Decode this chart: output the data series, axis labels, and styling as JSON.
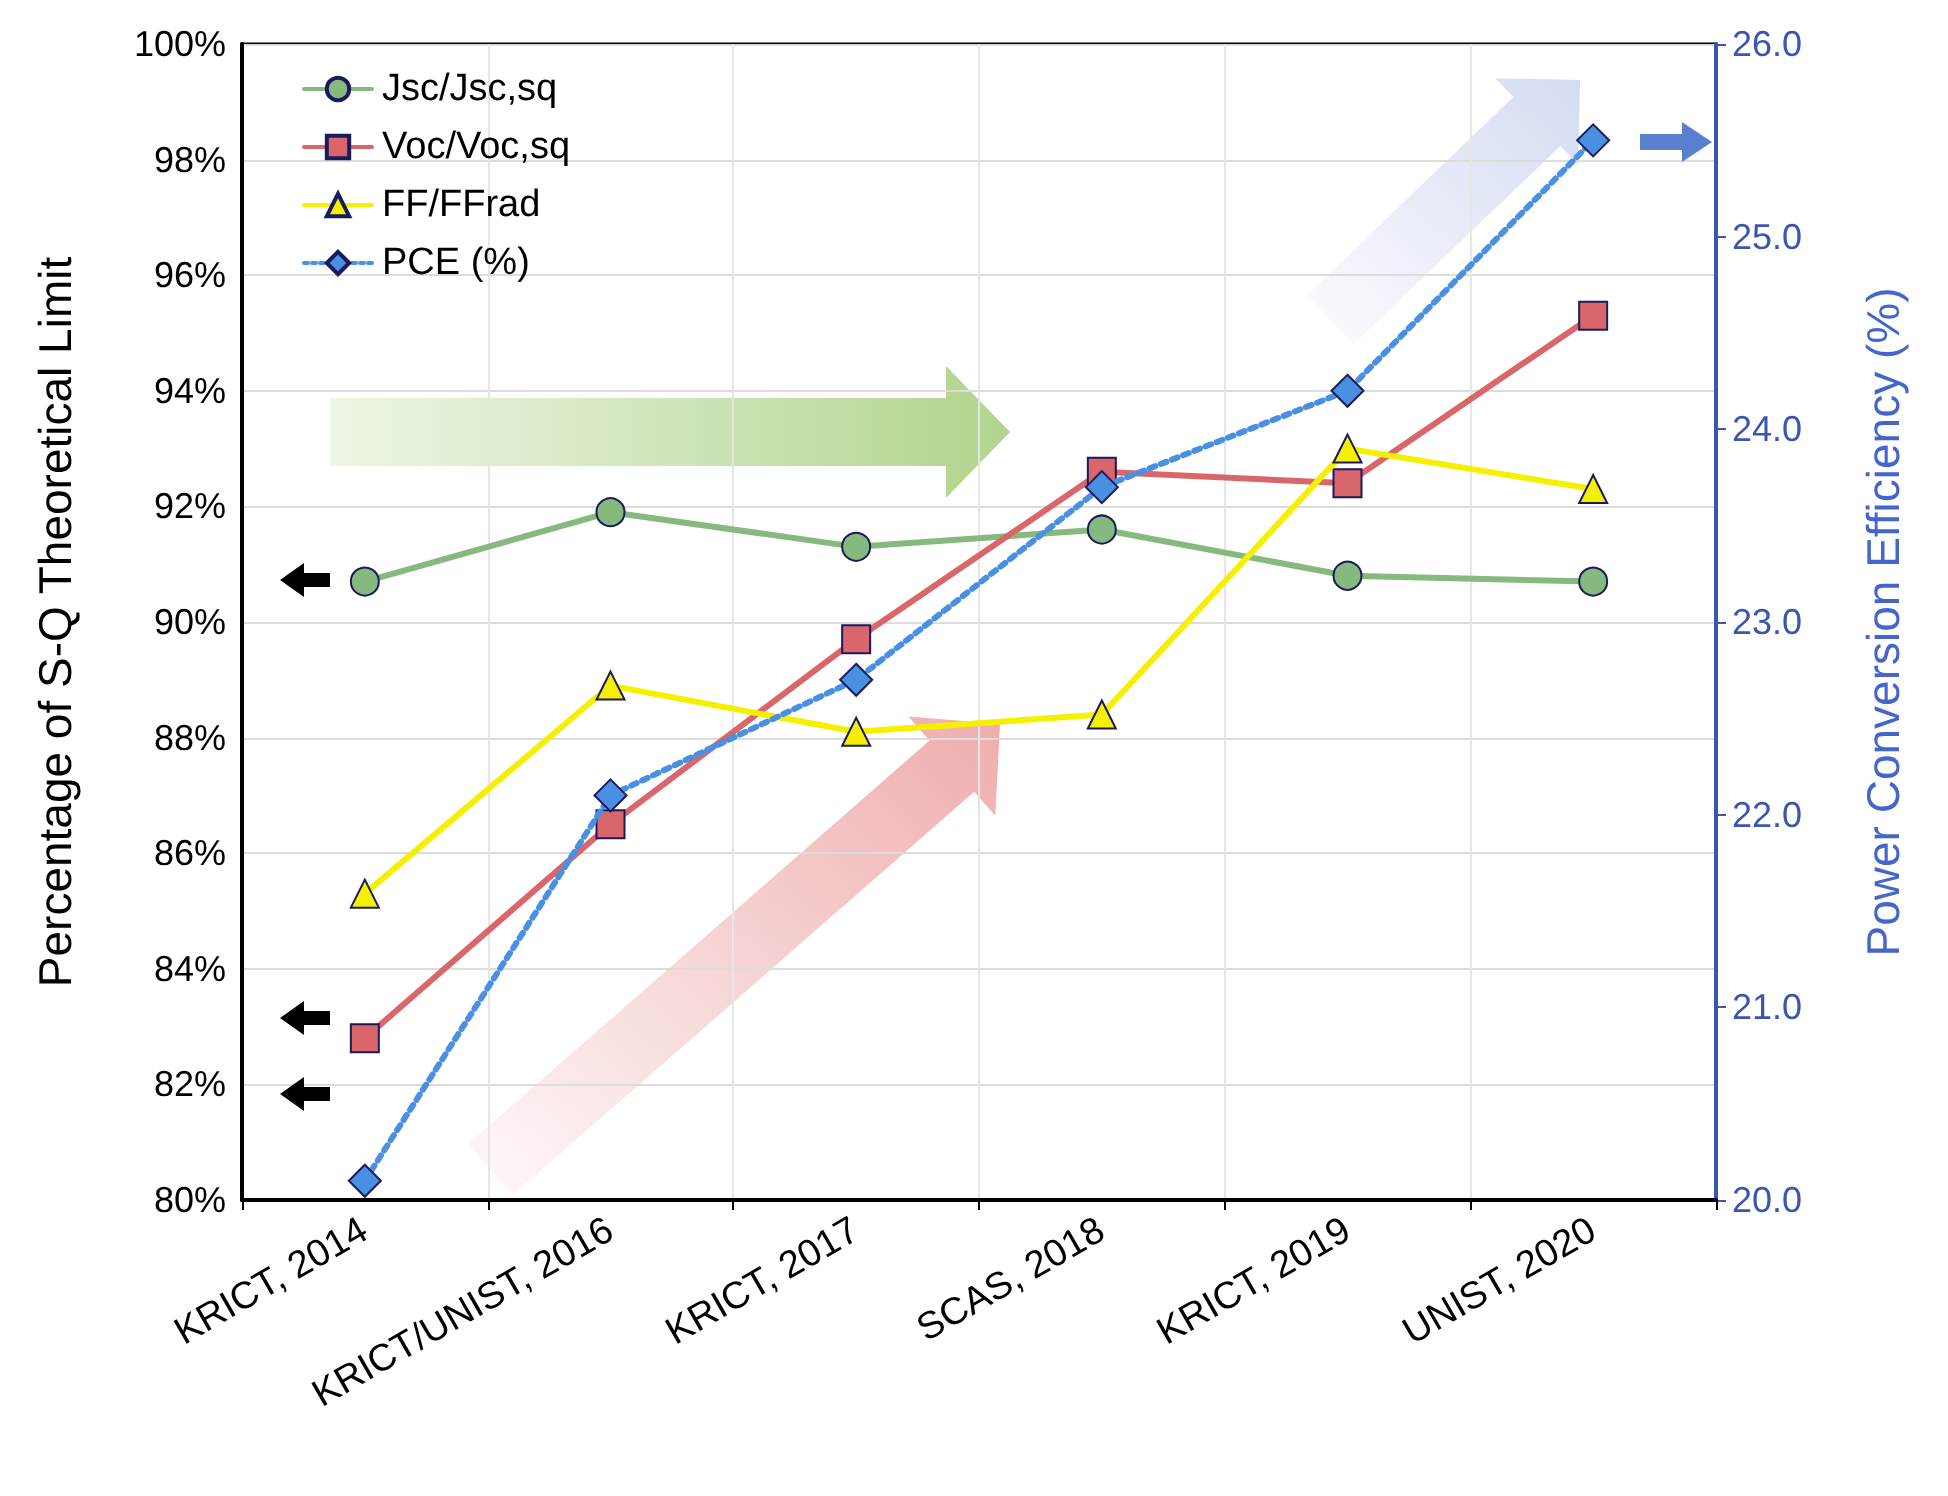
{
  "chart_data": {
    "type": "line",
    "ylabel": "Percentage of S-Q Theoretical Limit",
    "y2label": "Power Conversion Efficiency (%)",
    "categories": [
      "KRICT, 2014",
      "KRICT/UNIST, 2016",
      "KRICT, 2017",
      "SCAS, 2018",
      "KRICT, 2019",
      "UNIST, 2020"
    ],
    "series": [
      {
        "name": "Jsc/Jsc,sq",
        "color": "#86b97e",
        "marker": "circle",
        "line_style": "solid",
        "values": [
          90.7,
          91.9,
          91.3,
          91.6,
          90.8,
          90.7
        ]
      },
      {
        "name": "Voc/Voc,sq",
        "color": "#d9666b",
        "marker": "square",
        "line_style": "solid",
        "values": [
          82.8,
          86.5,
          89.7,
          92.6,
          92.4,
          95.3
        ]
      },
      {
        "name": "FF/FFrad",
        "color": "#f5f000",
        "marker": "triangle",
        "line_style": "solid",
        "values": [
          85.3,
          88.9,
          88.1,
          88.4,
          93.0,
          92.3
        ]
      },
      {
        "name": "PCE (%)",
        "color": "#4a90e2",
        "marker": "diamond",
        "line_style": "dotted",
        "axis": "y2",
        "values": [
          20.1,
          22.1,
          22.7,
          23.7,
          24.2,
          25.5
        ]
      }
    ],
    "ylim": [
      80,
      100
    ],
    "yticks": [
      {
        "value": 80,
        "label": "80%"
      },
      {
        "value": 82,
        "label": "82%"
      },
      {
        "value": 84,
        "label": "84%"
      },
      {
        "value": 86,
        "label": "86%"
      },
      {
        "value": 88,
        "label": "88%"
      },
      {
        "value": 90,
        "label": "90%"
      },
      {
        "value": 92,
        "label": "92%"
      },
      {
        "value": 94,
        "label": "94%"
      },
      {
        "value": 96,
        "label": "96%"
      },
      {
        "value": 98,
        "label": "98%"
      },
      {
        "value": 100,
        "label": "100%"
      }
    ],
    "y2lim": [
      20,
      26
    ],
    "y2ticks": [
      {
        "value": 20,
        "label": "20.0"
      },
      {
        "value": 21,
        "label": "21.0"
      },
      {
        "value": 22,
        "label": "22.0"
      },
      {
        "value": 23,
        "label": "23.0"
      },
      {
        "value": 24,
        "label": "24.0"
      },
      {
        "value": 25,
        "label": "25.0"
      },
      {
        "value": 26,
        "label": "26.0"
      }
    ],
    "grid": true,
    "legend": "top left"
  }
}
